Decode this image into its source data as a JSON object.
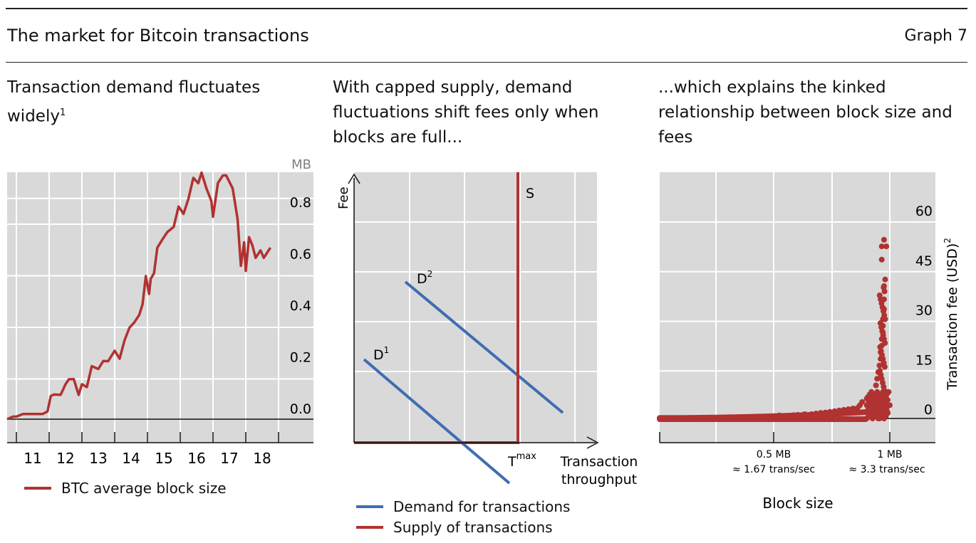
{
  "header": {
    "title": "The market for Bitcoin transactions",
    "graph_label": "Graph 7"
  },
  "colors": {
    "btc_red": "#b03231",
    "demand_blue": "#3f6db3",
    "panel_bg": "#d9d9d9"
  },
  "panels": {
    "left": {
      "title": "Transaction demand fluctuates widely",
      "footnote": "1",
      "unit": "MB",
      "legend": "BTC average block size"
    },
    "middle": {
      "title": "With capped supply, demand fluctuations shift fees only when blocks are full...",
      "y_label": "Fee",
      "x_label_1": "Transaction",
      "x_label_2": "throughput",
      "supply_label": "S",
      "d1": "D",
      "d1_sup": "1",
      "d2": "D",
      "d2_sup": "2",
      "tmax": "T",
      "tmax_sup": "max",
      "legend_demand": "Demand for transactions",
      "legend_supply": "Supply of transactions"
    },
    "right": {
      "title": "...which explains the kinked relationship between block size and fees",
      "y_label": "Transaction fee (USD)",
      "y_label_sup": "2",
      "x_label": "Block size",
      "x_tick_1_line1": "0.5 MB",
      "x_tick_1_line2": "≈ 1.67 trans/sec",
      "x_tick_2_line1": "1 MB",
      "x_tick_2_line2": "≈ 3.3 trans/sec"
    }
  },
  "chart_data": [
    {
      "type": "line",
      "title": "Transaction demand fluctuates widely",
      "ylabel": "MB",
      "ylim": [
        -0.04,
        1.0
      ],
      "xlim": [
        2010.3,
        2019.0
      ],
      "yticks": [
        0.0,
        0.2,
        0.4,
        0.6,
        0.8
      ],
      "ytick_labels": [
        "0.0",
        "0.2",
        "0.4",
        "0.6",
        "0.8"
      ],
      "xtick_labels": [
        "11",
        "12",
        "13",
        "14",
        "15",
        "16",
        "17",
        "18"
      ],
      "grid": true,
      "legend_position": "bottom",
      "series": [
        {
          "name": "BTC average block size",
          "color": "#b03231",
          "x": [
            2010.3,
            2010.6,
            2010.9,
            2011.0,
            2011.2,
            2011.5,
            2011.8,
            2011.95,
            2012.05,
            2012.15,
            2012.35,
            2012.5,
            2012.6,
            2012.75,
            2012.9,
            2013.0,
            2013.15,
            2013.3,
            2013.5,
            2013.65,
            2013.8,
            2014.0,
            2014.15,
            2014.3,
            2014.45,
            2014.6,
            2014.75,
            2014.85,
            2014.95,
            2015.05,
            2015.1,
            2015.2,
            2015.3,
            2015.45,
            2015.6,
            2015.8,
            2015.95,
            2016.1,
            2016.25,
            2016.4,
            2016.55,
            2016.65,
            2016.8,
            2016.95,
            2017.0,
            2017.15,
            2017.3,
            2017.4,
            2017.6,
            2017.75,
            2017.85,
            2017.95,
            2018.0,
            2018.1,
            2018.2,
            2018.3,
            2018.45,
            2018.55,
            2018.75
          ],
          "y": [
            0.0,
            0.0,
            0.01,
            0.01,
            0.02,
            0.02,
            0.02,
            0.03,
            0.09,
            0.09,
            0.1,
            0.13,
            0.16,
            0.15,
            0.1,
            0.13,
            0.13,
            0.2,
            0.2,
            0.22,
            0.23,
            0.26,
            0.24,
            0.3,
            0.36,
            0.37,
            0.41,
            0.44,
            0.56,
            0.48,
            0.55,
            0.56,
            0.67,
            0.69,
            0.73,
            0.74,
            0.83,
            0.79,
            0.86,
            0.93,
            0.92,
            0.95,
            0.9,
            0.84,
            0.79,
            0.91,
            0.95,
            0.94,
            0.9,
            0.77,
            0.6,
            0.68,
            0.58,
            0.7,
            0.68,
            0.62,
            0.66,
            0.62,
            0.67
          ]
        }
      ]
    },
    {
      "type": "line",
      "title": "With capped supply, demand fluctuations shift fees only when blocks are full...",
      "xlabel": "Transaction throughput",
      "ylabel": "Fee",
      "grid": true,
      "legend_position": "bottom",
      "series": [
        {
          "name": "Demand for transactions",
          "label": "D1",
          "color": "#3f6db3",
          "x": [
            0.04,
            0.64
          ],
          "y": [
            0.33,
            -0.15
          ]
        },
        {
          "name": "Demand for transactions",
          "label": "D2",
          "color": "#3f6db3",
          "x": [
            0.21,
            0.86
          ],
          "y": [
            0.6,
            0.1
          ]
        },
        {
          "name": "Supply of transactions",
          "label": "S",
          "color": "#b03231",
          "x": [
            0.0,
            0.68,
            0.68
          ],
          "y": [
            0.0,
            0.0,
            1.0
          ]
        }
      ]
    },
    {
      "type": "scatter",
      "title": "...which explains the kinked relationship between block size and fees",
      "xlabel": "Block size",
      "ylabel": "Transaction fee (USD)",
      "ylim": [
        -5,
        67
      ],
      "xlim": [
        0,
        1.1
      ],
      "yticks": [
        0,
        15,
        30,
        45,
        60
      ],
      "ytick_labels": [
        "0",
        "15",
        "30",
        "45",
        "60"
      ],
      "grid": true,
      "note": "fees near zero for block sizes up to ~0.9 MB; sharp spike up to ~54 USD as blocks approach 1 MB",
      "points": [
        [
          0.02,
          0.1
        ],
        [
          0.05,
          0.1
        ],
        [
          0.08,
          0.1
        ],
        [
          0.1,
          0.15
        ],
        [
          0.14,
          0.1
        ],
        [
          0.18,
          0.2
        ],
        [
          0.22,
          0.2
        ],
        [
          0.26,
          0.3
        ],
        [
          0.3,
          0.3
        ],
        [
          0.34,
          0.4
        ],
        [
          0.38,
          0.4
        ],
        [
          0.42,
          0.5
        ],
        [
          0.46,
          0.6
        ],
        [
          0.5,
          0.7
        ],
        [
          0.52,
          0.9
        ],
        [
          0.55,
          0.8
        ],
        [
          0.58,
          1.0
        ],
        [
          0.6,
          1.1
        ],
        [
          0.63,
          1.3
        ],
        [
          0.66,
          1.3
        ],
        [
          0.68,
          1.5
        ],
        [
          0.7,
          1.7
        ],
        [
          0.72,
          1.8
        ],
        [
          0.74,
          2.0
        ],
        [
          0.76,
          2.2
        ],
        [
          0.78,
          2.4
        ],
        [
          0.8,
          2.6
        ],
        [
          0.82,
          2.8
        ],
        [
          0.84,
          3.0
        ],
        [
          0.86,
          3.2
        ],
        [
          0.87,
          4.0
        ],
        [
          0.88,
          5.0
        ],
        [
          0.9,
          6.0
        ],
        [
          0.92,
          7.5
        ],
        [
          0.94,
          10
        ],
        [
          0.945,
          12
        ],
        [
          0.95,
          14
        ],
        [
          0.955,
          16
        ],
        [
          0.96,
          18
        ],
        [
          0.96,
          20
        ],
        [
          0.965,
          22
        ],
        [
          0.965,
          24
        ],
        [
          0.97,
          26
        ],
        [
          0.97,
          28
        ],
        [
          0.97,
          30
        ],
        [
          0.975,
          33
        ],
        [
          0.975,
          36
        ],
        [
          0.975,
          40
        ],
        [
          0.98,
          42
        ],
        [
          0.965,
          48
        ],
        [
          0.965,
          52
        ],
        [
          0.975,
          54
        ],
        [
          0.985,
          52
        ],
        [
          0.98,
          1.0
        ],
        [
          0.99,
          2.0
        ],
        [
          1.0,
          4.0
        ]
      ]
    }
  ]
}
